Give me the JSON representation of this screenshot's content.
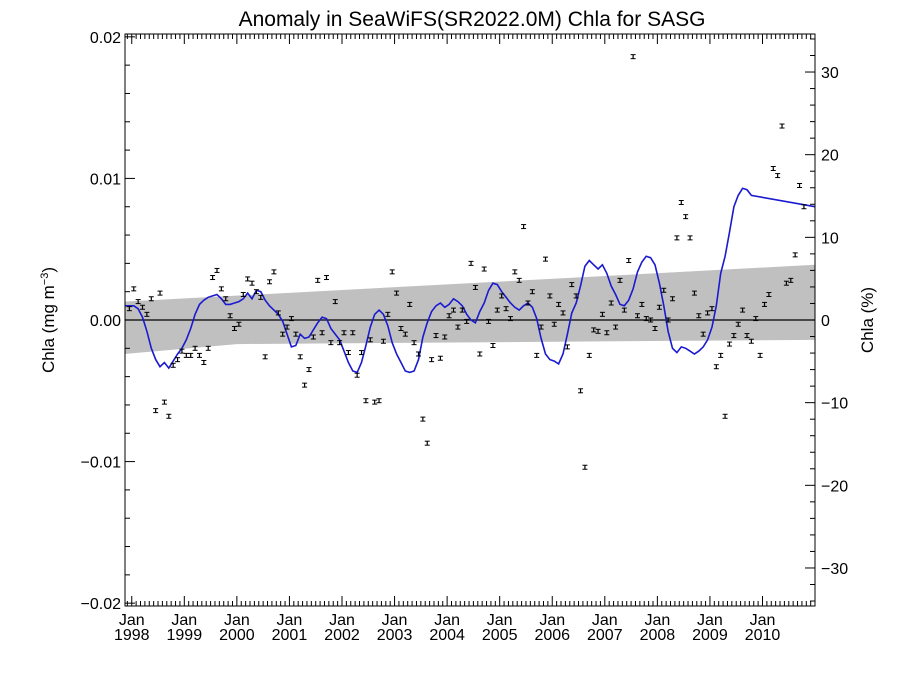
{
  "chart_data": {
    "type": "scatter",
    "title": "Anomaly in SeaWiFS(SR2022.0M) Chla for SASG",
    "ylabel_prefix": "Chla (mg m",
    "ylabel_sup": "−3",
    "ylabel_suffix": ")",
    "y2label": "Chla (%)",
    "xlim": [
      "1997-11-15",
      "2010-12-31"
    ],
    "ylim": [
      -0.0202,
      0.0202
    ],
    "y2lim": [
      -34.6,
      34.6
    ],
    "y_ticks": [
      {
        "value": -0.02,
        "label": "−0.02"
      },
      {
        "value": -0.01,
        "label": "−0.01"
      },
      {
        "value": 0.0,
        "label": "0.00"
      },
      {
        "value": 0.01,
        "label": "0.01"
      },
      {
        "value": 0.02,
        "label": "0.02"
      }
    ],
    "y2_ticks": [
      {
        "value": -30,
        "label": "−30"
      },
      {
        "value": -20,
        "label": "−20"
      },
      {
        "value": -10,
        "label": "−10"
      },
      {
        "value": 0,
        "label": "0"
      },
      {
        "value": 10,
        "label": "10"
      },
      {
        "value": 20,
        "label": "20"
      },
      {
        "value": 30,
        "label": "30"
      }
    ],
    "x_ticks": [
      {
        "date": "1998-01-01",
        "month": "Jan",
        "year": "1998"
      },
      {
        "date": "1999-01-01",
        "month": "Jan",
        "year": "1999"
      },
      {
        "date": "2000-01-01",
        "month": "Jan",
        "year": "2000"
      },
      {
        "date": "2001-01-01",
        "month": "Jan",
        "year": "2001"
      },
      {
        "date": "2002-01-01",
        "month": "Jan",
        "year": "2002"
      },
      {
        "date": "2003-01-01",
        "month": "Jan",
        "year": "2003"
      },
      {
        "date": "2004-01-01",
        "month": "Jan",
        "year": "2004"
      },
      {
        "date": "2005-01-01",
        "month": "Jan",
        "year": "2005"
      },
      {
        "date": "2006-01-01",
        "month": "Jan",
        "year": "2006"
      },
      {
        "date": "2007-01-01",
        "month": "Jan",
        "year": "2007"
      },
      {
        "date": "2008-01-01",
        "month": "Jan",
        "year": "2008"
      },
      {
        "date": "2009-01-01",
        "month": "Jan",
        "year": "2009"
      },
      {
        "date": "2010-01-01",
        "month": "Jan",
        "year": "2010"
      }
    ],
    "trend_band": {
      "upper": [
        [
          "1997-11-15",
          0.0013
        ],
        [
          "2010-12-31",
          0.0039
        ]
      ],
      "lower": [
        [
          "1997-11-15",
          -0.0024
        ],
        [
          "2000-01-01",
          -0.0017
        ],
        [
          "2010-12-31",
          -0.0014
        ]
      ],
      "color": "#c0c0c0"
    },
    "zero_line": 0.0,
    "colors": {
      "smooth": "#1a1ad0",
      "points": "#000000"
    },
    "points": [
      [
        "1997-12",
        0.0008
      ],
      [
        "1998-01",
        0.0022
      ],
      [
        "1998-02",
        0.0013
      ],
      [
        "1998-03",
        0.0009
      ],
      [
        "1998-04",
        0.0004
      ],
      [
        "1998-05",
        0.0015
      ],
      [
        "1998-06",
        -0.0064
      ],
      [
        "1998-07",
        0.0019
      ],
      [
        "1998-08",
        -0.0058
      ],
      [
        "1998-09",
        -0.0068
      ],
      [
        "1998-10",
        -0.0032
      ],
      [
        "1998-11",
        -0.0028
      ],
      [
        "1998-12",
        -0.0022
      ],
      [
        "1999-01",
        -0.0025
      ],
      [
        "1999-02",
        -0.0025
      ],
      [
        "1999-03",
        -0.002
      ],
      [
        "1999-04",
        -0.0025
      ],
      [
        "1999-05",
        -0.003
      ],
      [
        "1999-06",
        -0.002
      ],
      [
        "1999-07",
        0.003
      ],
      [
        "1999-08",
        0.0035
      ],
      [
        "1999-09",
        0.0022
      ],
      [
        "1999-10",
        0.0015
      ],
      [
        "1999-11",
        0.0003
      ],
      [
        "1999-12",
        -0.0006
      ],
      [
        "2000-01",
        -0.0003
      ],
      [
        "2000-02",
        0.0018
      ],
      [
        "2000-03",
        0.0029
      ],
      [
        "2000-04",
        0.0026
      ],
      [
        "2000-05",
        0.002
      ],
      [
        "2000-06",
        0.0016
      ],
      [
        "2000-07",
        -0.0026
      ],
      [
        "2000-08",
        0.0027
      ],
      [
        "2000-09",
        0.0034
      ],
      [
        "2000-10",
        0.0005
      ],
      [
        "2000-11",
        -0.001
      ],
      [
        "2000-12",
        -0.0005
      ],
      [
        "2001-01",
        0.0001
      ],
      [
        "2001-02",
        -0.001
      ],
      [
        "2001-03",
        -0.0026
      ],
      [
        "2001-04",
        -0.0046
      ],
      [
        "2001-05",
        -0.0035
      ],
      [
        "2001-06",
        -0.0012
      ],
      [
        "2001-07",
        0.0028
      ],
      [
        "2001-08",
        -0.0009
      ],
      [
        "2001-09",
        0.003
      ],
      [
        "2001-10",
        -0.0016
      ],
      [
        "2001-11",
        0.0013
      ],
      [
        "2001-12",
        -0.0016
      ],
      [
        "2002-01",
        -0.0009
      ],
      [
        "2002-02",
        -0.0023
      ],
      [
        "2002-03",
        -0.0009
      ],
      [
        "2002-04",
        -0.0039
      ],
      [
        "2002-05",
        -0.0023
      ],
      [
        "2002-06",
        -0.0057
      ],
      [
        "2002-07",
        -0.0014
      ],
      [
        "2002-08",
        -0.0058
      ],
      [
        "2002-09",
        -0.0057
      ],
      [
        "2002-10",
        -0.0015
      ],
      [
        "2002-11",
        0.0004
      ],
      [
        "2002-12",
        0.0034
      ],
      [
        "2003-01",
        0.0019
      ],
      [
        "2003-02",
        -0.0006
      ],
      [
        "2003-03",
        -0.001
      ],
      [
        "2003-04",
        0.0011
      ],
      [
        "2003-05",
        -0.0016
      ],
      [
        "2003-06",
        -0.0024
      ],
      [
        "2003-07",
        -0.007
      ],
      [
        "2003-08",
        -0.0087
      ],
      [
        "2003-09",
        -0.0028
      ],
      [
        "2003-10",
        -0.0011
      ],
      [
        "2003-11",
        -0.0027
      ],
      [
        "2003-12",
        -0.0012
      ],
      [
        "2004-01",
        0.0003
      ],
      [
        "2004-02",
        0.0007
      ],
      [
        "2004-03",
        -0.0005
      ],
      [
        "2004-04",
        0.0007
      ],
      [
        "2004-05",
        -0.0001
      ],
      [
        "2004-06",
        0.004
      ],
      [
        "2004-07",
        0.0023
      ],
      [
        "2004-08",
        -0.0024
      ],
      [
        "2004-09",
        0.0036
      ],
      [
        "2004-10",
        -0.0001
      ],
      [
        "2004-11",
        -0.0018
      ],
      [
        "2004-12",
        0.0007
      ],
      [
        "2005-01",
        0.0017
      ],
      [
        "2005-02",
        0.0008
      ],
      [
        "2005-03",
        0.0001
      ],
      [
        "2005-04",
        0.0034
      ],
      [
        "2005-05",
        0.0028
      ],
      [
        "2005-06",
        0.0066
      ],
      [
        "2005-07",
        0.0012
      ],
      [
        "2005-08",
        0.002
      ],
      [
        "2005-09",
        -0.0025
      ],
      [
        "2005-10",
        -0.0005
      ],
      [
        "2005-11",
        0.0043
      ],
      [
        "2005-12",
        0.0017
      ],
      [
        "2006-01",
        -0.0003
      ],
      [
        "2006-02",
        0.0011
      ],
      [
        "2006-03",
        0.0005
      ],
      [
        "2006-04",
        -0.0019
      ],
      [
        "2006-05",
        0.0025
      ],
      [
        "2006-06",
        0.0017
      ],
      [
        "2006-07",
        -0.005
      ],
      [
        "2006-08",
        -0.0104
      ],
      [
        "2006-09",
        -0.0025
      ],
      [
        "2006-10",
        -0.0007
      ],
      [
        "2006-11",
        -0.0008
      ],
      [
        "2006-12",
        0.0004
      ],
      [
        "2007-01",
        -0.0009
      ],
      [
        "2007-02",
        0.0012
      ],
      [
        "2007-03",
        -0.0005
      ],
      [
        "2007-04",
        0.0028
      ],
      [
        "2007-05",
        0.0007
      ],
      [
        "2007-06",
        0.0042
      ],
      [
        "2007-07",
        0.0186
      ],
      [
        "2007-08",
        0.0003
      ],
      [
        "2007-09",
        0.0011
      ],
      [
        "2007-10",
        0.0001
      ],
      [
        "2007-11",
        0.0
      ],
      [
        "2007-12",
        -0.0006
      ],
      [
        "2008-01",
        0.0009
      ],
      [
        "2008-02",
        0.0021
      ],
      [
        "2008-03",
        0.0
      ],
      [
        "2008-04",
        0.0015
      ],
      [
        "2008-05",
        0.0058
      ],
      [
        "2008-06",
        0.0083
      ],
      [
        "2008-07",
        0.0073
      ],
      [
        "2008-08",
        0.0058
      ],
      [
        "2008-09",
        0.0019
      ],
      [
        "2008-10",
        0.0003
      ],
      [
        "2008-11",
        -0.001
      ],
      [
        "2008-12",
        0.0005
      ],
      [
        "2009-01",
        0.0008
      ],
      [
        "2009-02",
        -0.0033
      ],
      [
        "2009-03",
        -0.0025
      ],
      [
        "2009-04",
        -0.0068
      ],
      [
        "2009-05",
        -0.0017
      ],
      [
        "2009-06",
        -0.0011
      ],
      [
        "2009-07",
        -0.0003
      ],
      [
        "2009-08",
        0.0007
      ],
      [
        "2009-09",
        -0.0011
      ],
      [
        "2009-10",
        -0.0015
      ],
      [
        "2009-11",
        0.0001
      ],
      [
        "2009-12",
        -0.0025
      ],
      [
        "2010-01",
        0.0011
      ],
      [
        "2010-02",
        0.0018
      ],
      [
        "2010-03",
        0.0107
      ],
      [
        "2010-04",
        0.0102
      ],
      [
        "2010-05",
        0.0137
      ],
      [
        "2010-06",
        0.0026
      ],
      [
        "2010-07",
        0.0028
      ],
      [
        "2010-08",
        0.0046
      ],
      [
        "2010-09",
        0.0095
      ],
      [
        "2010-10",
        0.008
      ]
    ],
    "smooth": [
      [
        "1997-11-15",
        0.001
      ],
      [
        "1998-01",
        0.001
      ],
      [
        "1998-02",
        0.0008
      ],
      [
        "1998-03",
        0.0002
      ],
      [
        "1998-04",
        -0.0008
      ],
      [
        "1998-05",
        -0.002
      ],
      [
        "1998-06",
        -0.0028
      ],
      [
        "1998-07",
        -0.0033
      ],
      [
        "1998-08",
        -0.003
      ],
      [
        "1998-09",
        -0.0034
      ],
      [
        "1998-10",
        -0.0029
      ],
      [
        "1998-11",
        -0.0024
      ],
      [
        "1998-12",
        -0.002
      ],
      [
        "1999-01",
        -0.0014
      ],
      [
        "1999-02",
        -0.0006
      ],
      [
        "1999-03",
        0.0004
      ],
      [
        "1999-04",
        0.0011
      ],
      [
        "1999-05",
        0.0014
      ],
      [
        "1999-06",
        0.0016
      ],
      [
        "1999-07",
        0.0017
      ],
      [
        "1999-08",
        0.0018
      ],
      [
        "1999-09",
        0.0015
      ],
      [
        "1999-10",
        0.0011
      ],
      [
        "1999-11",
        0.0011
      ],
      [
        "1999-12",
        0.0012
      ],
      [
        "2000-01",
        0.0013
      ],
      [
        "2000-02",
        0.0015
      ],
      [
        "2000-03",
        0.0019
      ],
      [
        "2000-04",
        0.0015
      ],
      [
        "2000-05",
        0.0021
      ],
      [
        "2000-06",
        0.002
      ],
      [
        "2000-07",
        0.0014
      ],
      [
        "2000-08",
        0.001
      ],
      [
        "2000-09",
        0.0007
      ],
      [
        "2000-10",
        0.0004
      ],
      [
        "2000-11",
        -0.0001
      ],
      [
        "2000-12",
        -0.001
      ],
      [
        "2001-01",
        -0.0019
      ],
      [
        "2001-02",
        -0.0018
      ],
      [
        "2001-03",
        -0.001
      ],
      [
        "2001-04",
        -0.0013
      ],
      [
        "2001-05",
        -0.0012
      ],
      [
        "2001-06",
        -0.0007
      ],
      [
        "2001-07",
        -0.0002
      ],
      [
        "2001-08",
        0.0002
      ],
      [
        "2001-09",
        0.0001
      ],
      [
        "2001-10",
        -0.0006
      ],
      [
        "2001-11",
        -0.001
      ],
      [
        "2001-12",
        -0.0014
      ],
      [
        "2002-01",
        -0.0022
      ],
      [
        "2002-02",
        -0.003
      ],
      [
        "2002-03",
        -0.0036
      ],
      [
        "2002-04",
        -0.0037
      ],
      [
        "2002-05",
        -0.003
      ],
      [
        "2002-06",
        -0.0018
      ],
      [
        "2002-07",
        -0.0005
      ],
      [
        "2002-08",
        0.0004
      ],
      [
        "2002-09",
        0.0007
      ],
      [
        "2002-10",
        0.0004
      ],
      [
        "2002-11",
        -0.0004
      ],
      [
        "2002-12",
        -0.0016
      ],
      [
        "2003-01",
        -0.0024
      ],
      [
        "2003-02",
        -0.003
      ],
      [
        "2003-03",
        -0.0036
      ],
      [
        "2003-04",
        -0.0037
      ],
      [
        "2003-05",
        -0.0036
      ],
      [
        "2003-06",
        -0.0028
      ],
      [
        "2003-07",
        -0.0012
      ],
      [
        "2003-08",
        -0.0002
      ],
      [
        "2003-09",
        0.0006
      ],
      [
        "2003-10",
        0.001
      ],
      [
        "2003-11",
        0.0012
      ],
      [
        "2003-12",
        0.0009
      ],
      [
        "2004-01",
        0.0011
      ],
      [
        "2004-02",
        0.0015
      ],
      [
        "2004-03",
        0.0013
      ],
      [
        "2004-04",
        0.001
      ],
      [
        "2004-05",
        0.0004
      ],
      [
        "2004-06",
        0.0
      ],
      [
        "2004-07",
        -0.0002
      ],
      [
        "2004-08",
        0.0006
      ],
      [
        "2004-09",
        0.0012
      ],
      [
        "2004-10",
        0.0021
      ],
      [
        "2004-11",
        0.0026
      ],
      [
        "2004-12",
        0.0025
      ],
      [
        "2005-01",
        0.002
      ],
      [
        "2005-02",
        0.0016
      ],
      [
        "2005-03",
        0.0012
      ],
      [
        "2005-04",
        0.0009
      ],
      [
        "2005-05",
        0.0007
      ],
      [
        "2005-06",
        0.001
      ],
      [
        "2005-07",
        0.0012
      ],
      [
        "2005-08",
        0.0009
      ],
      [
        "2005-09",
        0.0001
      ],
      [
        "2005-10",
        -0.0013
      ],
      [
        "2005-11",
        -0.0024
      ],
      [
        "2005-12",
        -0.0028
      ],
      [
        "2006-01",
        -0.0029
      ],
      [
        "2006-02",
        -0.0031
      ],
      [
        "2006-03",
        -0.0024
      ],
      [
        "2006-04",
        -0.001
      ],
      [
        "2006-05",
        0.0005
      ],
      [
        "2006-06",
        0.0012
      ],
      [
        "2006-07",
        0.0024
      ],
      [
        "2006-08",
        0.0038
      ],
      [
        "2006-09",
        0.0042
      ],
      [
        "2006-10",
        0.0039
      ],
      [
        "2006-11",
        0.0036
      ],
      [
        "2006-12",
        0.0039
      ],
      [
        "2007-01",
        0.0033
      ],
      [
        "2007-02",
        0.0024
      ],
      [
        "2007-03",
        0.0018
      ],
      [
        "2007-04",
        0.0011
      ],
      [
        "2007-05",
        0.001
      ],
      [
        "2007-06",
        0.0014
      ],
      [
        "2007-07",
        0.0022
      ],
      [
        "2007-08",
        0.0034
      ],
      [
        "2007-09",
        0.0041
      ],
      [
        "2007-10",
        0.0045
      ],
      [
        "2007-11",
        0.0044
      ],
      [
        "2007-12",
        0.0039
      ],
      [
        "2008-01",
        0.0026
      ],
      [
        "2008-02",
        0.001
      ],
      [
        "2008-03",
        -0.0008
      ],
      [
        "2008-04",
        -0.002
      ],
      [
        "2008-05",
        -0.0023
      ],
      [
        "2008-06",
        -0.0019
      ],
      [
        "2008-07",
        -0.002
      ],
      [
        "2008-08",
        -0.0022
      ],
      [
        "2008-09",
        -0.0024
      ],
      [
        "2008-10",
        -0.0022
      ],
      [
        "2008-11",
        -0.0019
      ],
      [
        "2008-12",
        -0.0014
      ],
      [
        "2009-01",
        -0.0005
      ],
      [
        "2009-02",
        0.001
      ],
      [
        "2009-03",
        0.0033
      ],
      [
        "2009-04",
        0.0045
      ],
      [
        "2009-05",
        0.0062
      ],
      [
        "2009-06",
        0.008
      ],
      [
        "2009-07",
        0.0088
      ],
      [
        "2009-08",
        0.0093
      ],
      [
        "2009-09",
        0.0092
      ],
      [
        "2009-10",
        0.0088
      ],
      [
        "2010-12-31",
        0.008
      ]
    ]
  }
}
